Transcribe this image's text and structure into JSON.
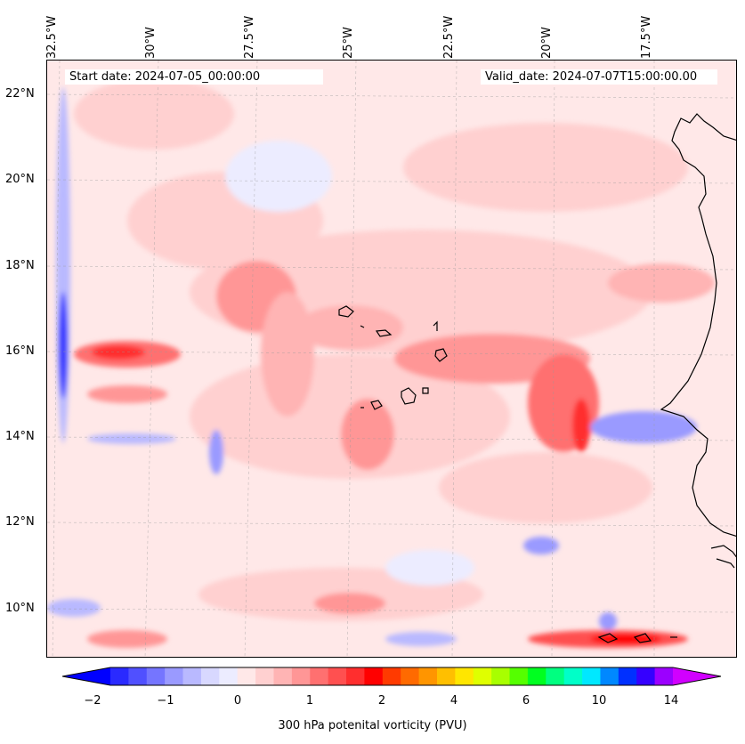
{
  "map": {
    "start_label": "Start date: 2024-07-05_00:00:00",
    "valid_label": "Valid_date: 2024-07-07T15:00:00.00",
    "lon_labels": [
      "32.5°W",
      "30°W",
      "27.5°W",
      "25°W",
      "22.5°W",
      "20°W",
      "17.5°W"
    ],
    "lat_labels": [
      "22°N",
      "20°N",
      "18°N",
      "16°N",
      "14°N",
      "12°N",
      "10°N"
    ]
  },
  "colorbar": {
    "title": "300 hPa potenital vorticity (PVU)",
    "tick_labels": [
      "−2",
      "−1",
      "0",
      "1",
      "2",
      "4",
      "6",
      "10",
      "14"
    ],
    "colors": [
      "#0000ff",
      "#2a2aff",
      "#5050ff",
      "#7575ff",
      "#9a9aff",
      "#b9b9ff",
      "#d8d8ff",
      "#ececff",
      "#ffe8e8",
      "#ffd0d0",
      "#ffb4b4",
      "#ff9696",
      "#ff7070",
      "#ff5050",
      "#ff2e2e",
      "#ff0000",
      "#ff3a00",
      "#ff6a00",
      "#ff9500",
      "#ffbf00",
      "#ffe600",
      "#dfff00",
      "#a8ff00",
      "#55ff00",
      "#00ff20",
      "#00ff80",
      "#00ffc8",
      "#00e8ff",
      "#0088ff",
      "#0030ff",
      "#3500ff",
      "#9b00ff",
      "#d100ff"
    ]
  }
}
